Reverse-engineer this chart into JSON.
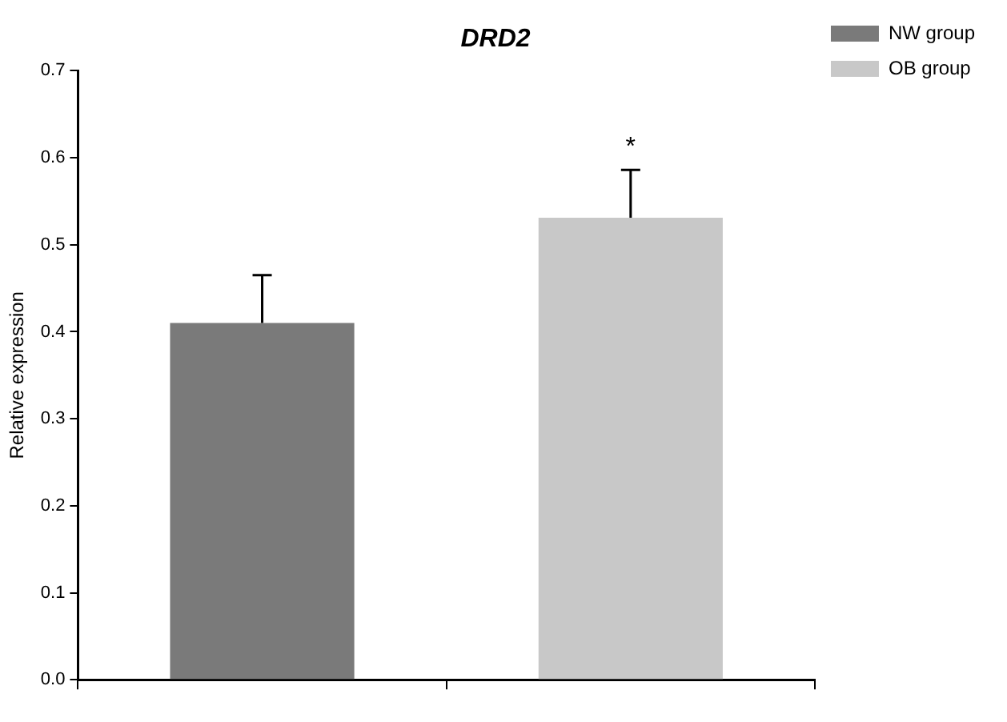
{
  "chart_data": {
    "type": "bar",
    "title": "DRD2",
    "ylabel": "Relative expression",
    "categories": [
      null,
      null
    ],
    "series": [
      {
        "name": "NW group",
        "color": "#7a7a7a",
        "values": [
          0.41,
          null
        ],
        "errors": [
          0.055,
          null
        ]
      },
      {
        "name": "OB group",
        "color": "#c8c8c8",
        "values": [
          null,
          0.531
        ],
        "errors": [
          null,
          0.055
        ]
      }
    ],
    "ylim": [
      0,
      0.7
    ],
    "yticks": [
      {
        "value": 0,
        "label": "0.0"
      },
      {
        "value": 0.1,
        "label": "0.1"
      },
      {
        "value": 0.2,
        "label": "0.2"
      },
      {
        "value": 0.3,
        "label": "0.3"
      },
      {
        "value": 0.4,
        "label": "0.4"
      },
      {
        "value": 0.5,
        "label": "0.5"
      },
      {
        "value": 0.6,
        "label": "0.6"
      },
      {
        "value": 0.7,
        "label": "0.7"
      }
    ],
    "grid": false,
    "legend": "top right",
    "annotations": [
      "*"
    ]
  }
}
